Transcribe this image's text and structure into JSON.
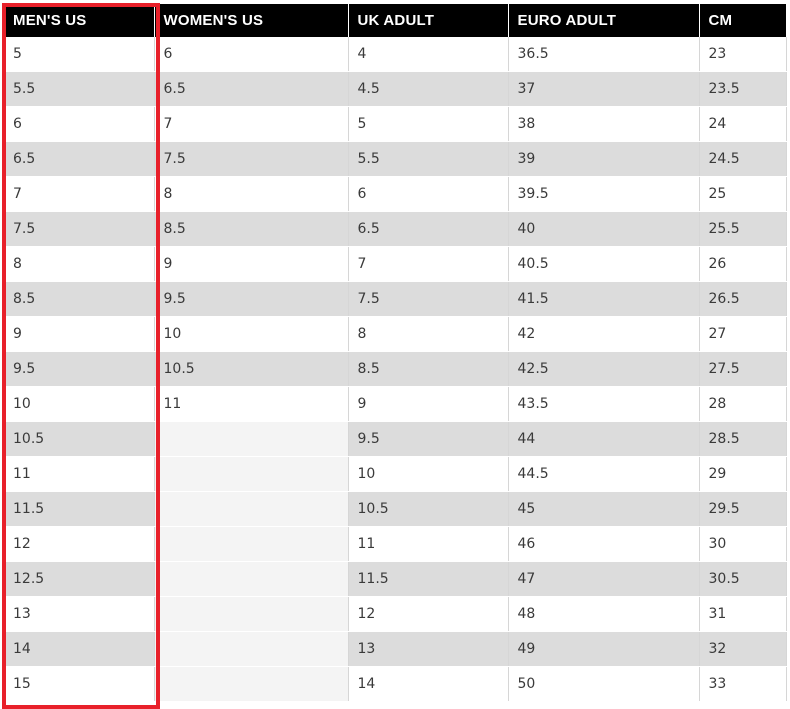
{
  "highlight_color": "#e8202a",
  "header_bg": "#000000",
  "headers": [
    "MEN'S US",
    "WOMEN'S US",
    "UK ADULT",
    "EURO ADULT",
    "CM"
  ],
  "rows": [
    [
      "5",
      "6",
      "4",
      "36.5",
      "23"
    ],
    [
      "5.5",
      "6.5",
      "4.5",
      "37",
      "23.5"
    ],
    [
      "6",
      "7",
      "5",
      "38",
      "24"
    ],
    [
      "6.5",
      "7.5",
      "5.5",
      "39",
      "24.5"
    ],
    [
      "7",
      "8",
      "6",
      "39.5",
      "25"
    ],
    [
      "7.5",
      "8.5",
      "6.5",
      "40",
      "25.5"
    ],
    [
      "8",
      "9",
      "7",
      "40.5",
      "26"
    ],
    [
      "8.5",
      "9.5",
      "7.5",
      "41.5",
      "26.5"
    ],
    [
      "9",
      "10",
      "8",
      "42",
      "27"
    ],
    [
      "9.5",
      "10.5",
      "8.5",
      "42.5",
      "27.5"
    ],
    [
      "10",
      "11",
      "9",
      "43.5",
      "28"
    ],
    [
      "10.5",
      "",
      "9.5",
      "44",
      "28.5"
    ],
    [
      "11",
      "",
      "10",
      "44.5",
      "29"
    ],
    [
      "11.5",
      "",
      "10.5",
      "45",
      "29.5"
    ],
    [
      "12",
      "",
      "11",
      "46",
      "30"
    ],
    [
      "12.5",
      "",
      "11.5",
      "47",
      "30.5"
    ],
    [
      "13",
      "",
      "12",
      "48",
      "31"
    ],
    [
      "14",
      "",
      "13",
      "49",
      "32"
    ],
    [
      "15",
      "",
      "14",
      "50",
      "33"
    ]
  ]
}
